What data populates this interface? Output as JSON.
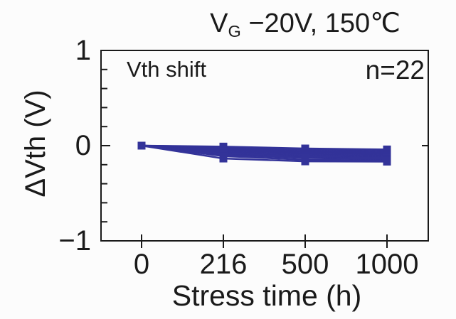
{
  "figure": {
    "title_parts": {
      "base": "V",
      "sub": "G",
      "rest": " −20V, 150℃"
    }
  },
  "chart_data": {
    "type": "line",
    "title": "V_G −20V, 150℃",
    "xlabel": "Stress time (h)",
    "ylabel": "ΔVth (V)",
    "annotations": [
      "Vth shift",
      "n=22"
    ],
    "sample_count": 22,
    "x_values": [
      0,
      216,
      500,
      1000
    ],
    "x_ticklabels": [
      "0",
      "216",
      "500",
      "1000"
    ],
    "x_scale": "equidistant ticks (category-like spacing)",
    "y_ticklabels": [
      "1",
      "0",
      "−1"
    ],
    "ylim": [
      -1,
      1
    ],
    "y_minor_tick_step": 0.2,
    "grid": "off",
    "legend": "none",
    "marker": "square",
    "series_color": "#333399",
    "axis_color": "#1a1a1a",
    "background_color": "#fcfcfc",
    "series": [
      [
        0,
        -0.01,
        -0.03,
        -0.04
      ],
      [
        0,
        -0.015,
        -0.038,
        -0.048
      ],
      [
        0,
        -0.02,
        -0.045,
        -0.055
      ],
      [
        0,
        -0.025,
        -0.05,
        -0.06
      ],
      [
        0,
        -0.03,
        -0.055,
        -0.065
      ],
      [
        0,
        -0.035,
        -0.06,
        -0.07
      ],
      [
        0,
        -0.04,
        -0.065,
        -0.075
      ],
      [
        0,
        -0.042,
        -0.068,
        -0.078
      ],
      [
        0,
        -0.045,
        -0.072,
        -0.082
      ],
      [
        0,
        -0.048,
        -0.075,
        -0.085
      ],
      [
        0,
        -0.052,
        -0.078,
        -0.088
      ],
      [
        0,
        -0.055,
        -0.082,
        -0.092
      ],
      [
        0,
        -0.058,
        -0.085,
        -0.095
      ],
      [
        0,
        -0.062,
        -0.088,
        -0.098
      ],
      [
        0,
        -0.065,
        -0.092,
        -0.102
      ],
      [
        0,
        -0.07,
        -0.096,
        -0.108
      ],
      [
        0,
        -0.075,
        -0.1,
        -0.115
      ],
      [
        0,
        -0.08,
        -0.108,
        -0.122
      ],
      [
        0,
        -0.085,
        -0.115,
        -0.13
      ],
      [
        0,
        -0.095,
        -0.13,
        -0.142
      ],
      [
        0,
        -0.11,
        -0.148,
        -0.155
      ],
      [
        0,
        -0.135,
        -0.165,
        -0.168
      ]
    ]
  }
}
